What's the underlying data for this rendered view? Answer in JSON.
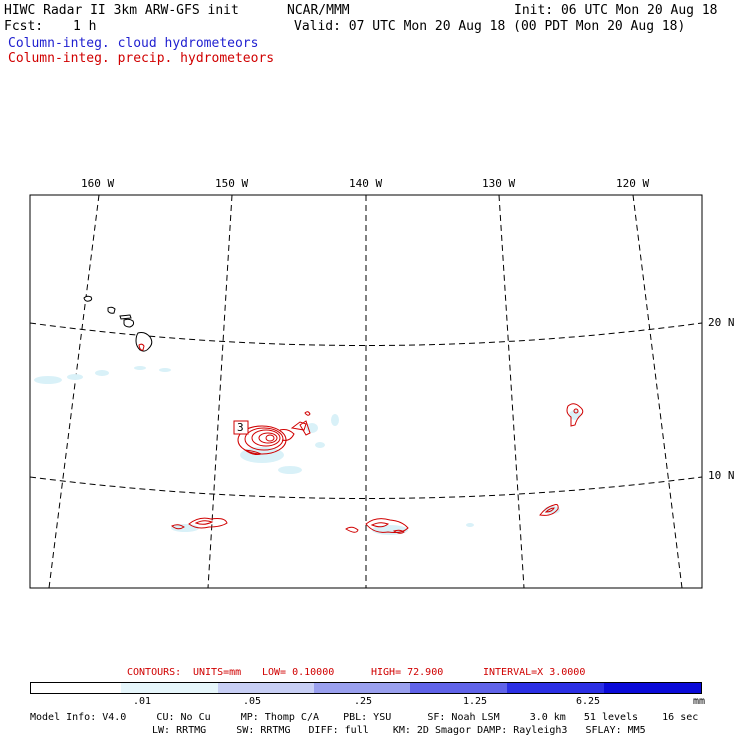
{
  "header": {
    "title": "HIWC Radar II 3km ARW-GFS init",
    "org": "NCAR/MMM",
    "init": "Init: 06 UTC Mon 20 Aug 18",
    "fcst_label": "Fcst:",
    "fcst_value": "1 h",
    "valid": "Valid: 07 UTC Mon 20 Aug 18 (00 PDT Mon 20 Aug 18)",
    "field_cloud": "Column-integ. cloud hydrometeors",
    "field_precip": "Column-integ. precip. hydrometeors"
  },
  "map": {
    "lon_labels": [
      "160 W",
      "150 W",
      "140 W",
      "130 W",
      "120 W"
    ],
    "lat_labels": [
      "20 N",
      "10 N"
    ],
    "storm_marker": "3"
  },
  "contours": {
    "label": "CONTOURS:",
    "units": "UNITS=mm",
    "low": "LOW= 0.10000",
    "high": "HIGH= 72.900",
    "interval": "INTERVAL=X 3.0000"
  },
  "colorbar": {
    "ticks": [
      ".01",
      ".05",
      ".25",
      "1.25",
      "6.25"
    ],
    "unit": "mm",
    "colors": [
      "#ffffff",
      "#e6f6fb",
      "#c8cff5",
      "#9aa0ee",
      "#6063e8",
      "#2b2fe4",
      "#0a0ad8"
    ]
  },
  "footer": {
    "line1": "Model Info: V4.0     CU: No Cu     MP: Thomp C/A    PBL: YSU      SF: Noah LSM     3.0 km   51 levels    16 sec",
    "line2": "LW: RRTMG     SW: RRTMG   DIFF: full    KM: 2D Smagor DAMP: Rayleigh3   SFLAY: MM5"
  },
  "colors": {
    "cloud_text": "#1f1fd0",
    "precip_text": "#d00000",
    "precip_contour": "#d00000",
    "cloud_fill": "#d9f1f8"
  }
}
